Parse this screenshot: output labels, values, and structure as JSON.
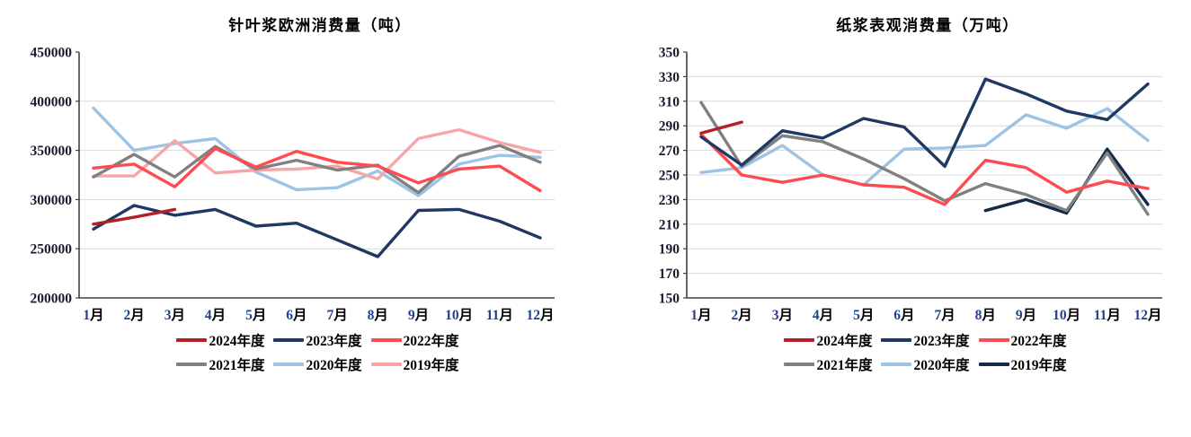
{
  "chart_data": [
    {
      "type": "line",
      "title": "针叶浆欧洲消费量（吨）",
      "x_categories": [
        "1月",
        "2月",
        "3月",
        "4月",
        "5月",
        "6月",
        "7月",
        "8月",
        "9月",
        "10月",
        "11月",
        "12月"
      ],
      "y_axis": {
        "min": 200000,
        "max": 450000,
        "step": 50000
      },
      "grid": true,
      "legend_position": "bottom",
      "series": [
        {
          "name": "2024年度",
          "color": "#B42025",
          "values": [
            275000,
            282000,
            290000
          ]
        },
        {
          "name": "2023年度",
          "color": "#1F3864",
          "values": [
            270000,
            294000,
            284000,
            290000,
            273000,
            276000,
            259000,
            242000,
            289000,
            290000,
            278000,
            261000
          ]
        },
        {
          "name": "2022年度",
          "color": "#FF4B4F",
          "values": [
            332000,
            336000,
            313000,
            352000,
            333000,
            349000,
            338000,
            334000,
            317000,
            331000,
            334000,
            309000
          ]
        },
        {
          "name": "2021年度",
          "color": "#808080",
          "values": [
            323000,
            346000,
            323000,
            354000,
            331000,
            340000,
            330000,
            335000,
            307000,
            344000,
            355000,
            338000
          ]
        },
        {
          "name": "2020年度",
          "color": "#9DC3E6",
          "values": [
            393000,
            350000,
            357000,
            362000,
            328000,
            310000,
            312000,
            329000,
            304000,
            336000,
            345000,
            343000
          ]
        },
        {
          "name": "2019年度",
          "color": "#F8A5A8",
          "values": [
            324000,
            324000,
            360000,
            327000,
            330000,
            331000,
            334000,
            321000,
            362000,
            371000,
            358000,
            348000
          ]
        }
      ]
    },
    {
      "type": "line",
      "title": "纸浆表观消费量（万吨）",
      "x_categories": [
        "1月",
        "2月",
        "3月",
        "4月",
        "5月",
        "6月",
        "7月",
        "8月",
        "9月",
        "10月",
        "11月",
        "12月"
      ],
      "y_axis": {
        "min": 150,
        "max": 350,
        "step": 20
      },
      "grid": true,
      "legend_position": "bottom",
      "series": [
        {
          "name": "2024年度",
          "color": "#B42025",
          "values": [
            284,
            293
          ]
        },
        {
          "name": "2023年度",
          "color": "#1F3864",
          "values": [
            281,
            258,
            286,
            280,
            296,
            289,
            257,
            328,
            316,
            302,
            295,
            324
          ]
        },
        {
          "name": "2022年度",
          "color": "#FF4B4F",
          "values": [
            283,
            250,
            244,
            250,
            242,
            240,
            226,
            262,
            256,
            236,
            245,
            239
          ]
        },
        {
          "name": "2021年度",
          "color": "#808080",
          "values": [
            309,
            257,
            282,
            277,
            263,
            247,
            229,
            243,
            234,
            221,
            268,
            218
          ]
        },
        {
          "name": "2020年度",
          "color": "#9DC3E6",
          "values": [
            252,
            256,
            274,
            250,
            242,
            271,
            272,
            274,
            299,
            288,
            304,
            278
          ]
        },
        {
          "name": "2019年度",
          "color": "#122A47",
          "values": [
            null,
            null,
            null,
            null,
            null,
            null,
            null,
            221,
            230,
            219,
            271,
            226
          ]
        }
      ]
    }
  ],
  "style": {
    "gridline_color": "#D9D9D9",
    "axis_color": "#404040",
    "x_number_color": "#20408F",
    "y_label_color": "#1b1b2e"
  }
}
